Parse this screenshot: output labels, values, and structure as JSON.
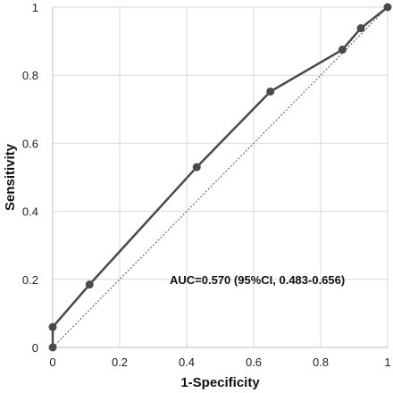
{
  "chart_data": {
    "type": "line",
    "title": "",
    "xlabel": "1-Specificity",
    "ylabel": "Sensitivity",
    "xlim": [
      0,
      1
    ],
    "ylim": [
      0,
      1
    ],
    "x_ticks": [
      "0",
      "0.2",
      "0.4",
      "0.6",
      "0.8",
      "1"
    ],
    "y_ticks": [
      "0",
      "0.2",
      "0.4",
      "0.6",
      "0.8",
      "1"
    ],
    "grid": true,
    "series": [
      {
        "x": [
          0,
          0,
          0.11,
          0.43,
          0.65,
          0.865,
          0.92,
          1
        ],
        "y": [
          0,
          0.06,
          0.185,
          0.53,
          0.752,
          0.875,
          0.938,
          1
        ],
        "color": "#4a4a4a",
        "marker": "circle"
      }
    ],
    "reference_line": {
      "x": [
        0,
        1
      ],
      "y": [
        0,
        1
      ],
      "style": "dotted"
    },
    "annotation": "AUC=0.570 (95%CI, 0.483-0.656)"
  }
}
